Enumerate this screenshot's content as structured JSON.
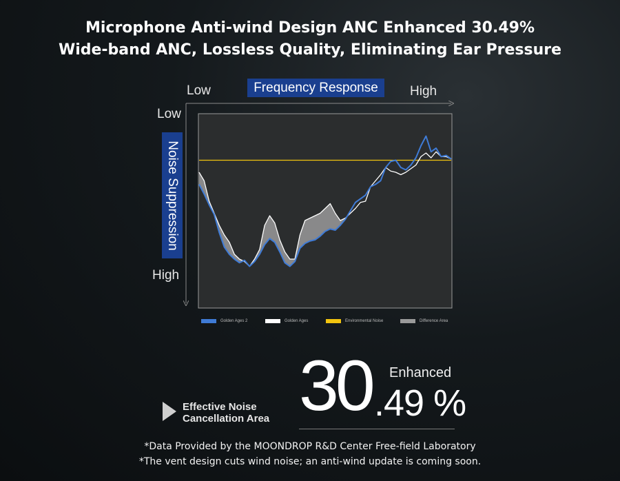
{
  "header": {
    "title_line1": "Microphone Anti-wind Design ANC Enhanced 30.49%",
    "title_line2": "Wide-band ANC, Lossless Quality, Eliminating Ear Pressure"
  },
  "axes": {
    "x_title": "Frequency Response",
    "x_low": "Low",
    "x_high": "High",
    "y_title": "Noise Suppression",
    "y_low": "Low",
    "y_high": "High"
  },
  "colors": {
    "golden_ages_2": "#3f7bd6",
    "golden_ages": "#ffffff",
    "environmental_noise": "#f2c40f",
    "difference_area": "#9a9a9a",
    "badge": "#1a3f8f"
  },
  "chart_data": {
    "type": "line",
    "x": [
      0,
      2,
      4,
      6,
      8,
      10,
      12,
      14,
      16,
      18,
      20,
      22,
      24,
      26,
      28,
      30,
      32,
      34,
      36,
      38,
      40,
      42,
      44,
      46,
      48,
      50,
      52,
      54,
      56,
      58,
      60,
      62,
      64,
      66,
      68,
      70,
      72,
      74,
      76,
      78,
      80,
      82,
      84,
      86,
      88,
      90,
      92,
      94,
      96,
      98,
      100
    ],
    "series": [
      {
        "name": "Golden Ages 2",
        "values": [
          72,
          64,
          55,
          47,
          32,
          20,
          14,
          10,
          7,
          9,
          4,
          8,
          14,
          22,
          27,
          24,
          16,
          7,
          4,
          8,
          19,
          23,
          25,
          26,
          29,
          33,
          35,
          34,
          38,
          43,
          50,
          57,
          60,
          63,
          70,
          72,
          75,
          86,
          91,
          92,
          86,
          84,
          88,
          94,
          104,
          112,
          99,
          102,
          95,
          96,
          93
        ]
      },
      {
        "name": "Golden Ages",
        "values": [
          82,
          75,
          58,
          48,
          38,
          30,
          24,
          14,
          10,
          8,
          4,
          10,
          18,
          38,
          46,
          40,
          26,
          16,
          10,
          10,
          30,
          42,
          44,
          46,
          48,
          52,
          56,
          48,
          42,
          44,
          48,
          52,
          57,
          58,
          70,
          75,
          80,
          86,
          83,
          82,
          80,
          82,
          85,
          88,
          95,
          98,
          94,
          99,
          95,
          95,
          93
        ]
      },
      {
        "name": "Environmental Noise",
        "values": [
          92,
          92,
          92,
          92,
          92,
          92,
          92,
          92,
          92,
          92,
          92,
          92,
          92,
          92,
          92,
          92,
          92,
          92,
          92,
          92,
          92,
          92,
          92,
          92,
          92,
          92,
          92,
          92,
          92,
          92,
          92,
          92,
          92,
          92,
          92,
          92,
          92,
          92,
          92,
          92,
          92,
          92,
          92,
          92,
          92,
          92,
          92,
          92,
          92,
          92,
          92
        ]
      }
    ],
    "legend": [
      "Golden Ages 2",
      "Golden Ages",
      "Environmental Noise",
      "Difference Area"
    ],
    "xlim": [
      0,
      100
    ],
    "ylim": [
      -30,
      130
    ],
    "grid": false,
    "legend_position": "bottom"
  },
  "stat": {
    "label_line1": "Effective Noise",
    "label_line2": "Cancellation Area",
    "integer": "30",
    "decimal": ".49",
    "unit": " %",
    "qualifier": "Enhanced"
  },
  "footnotes": {
    "note1": "*Data Provided by the MOONDROP R&D Center Free-field Laboratory",
    "note2": "*The vent design cuts wind noise; an anti-wind update is coming soon."
  }
}
